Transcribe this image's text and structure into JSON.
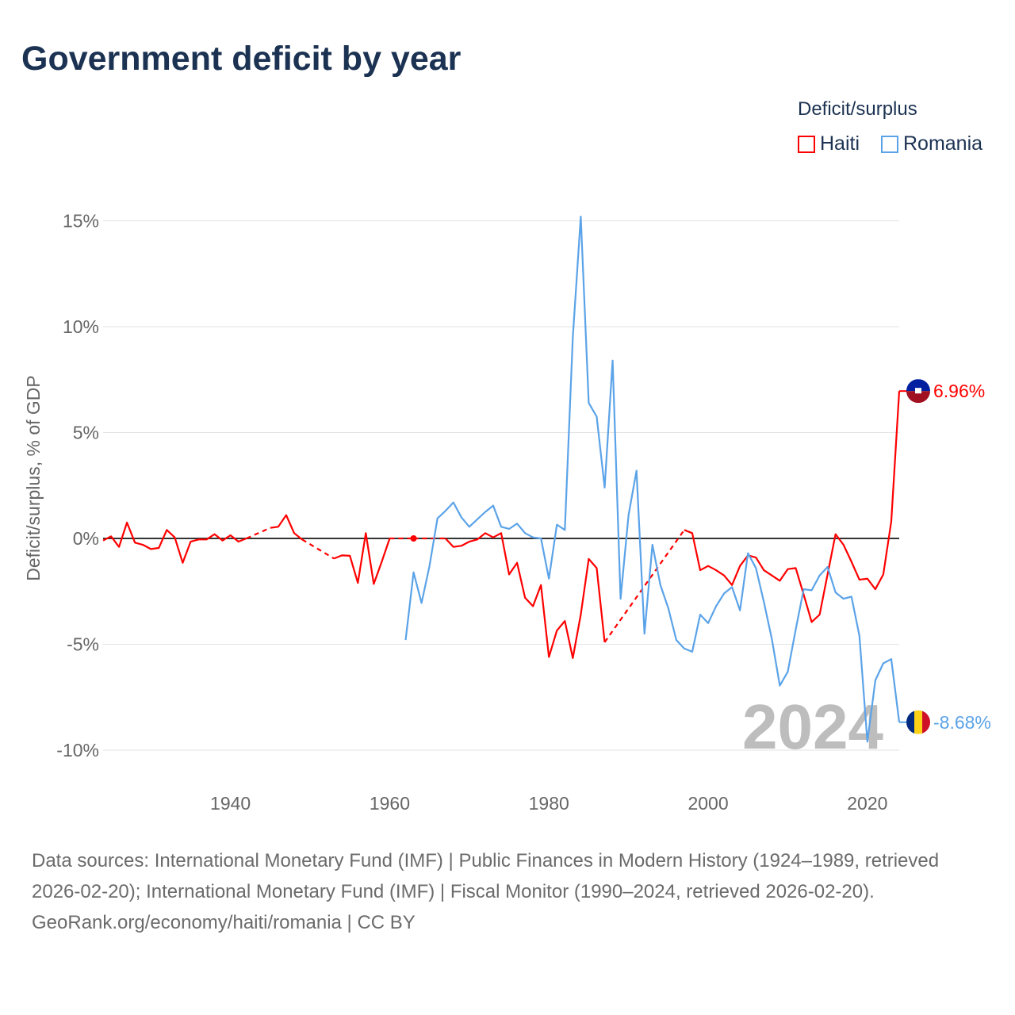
{
  "title": "Government deficit by year",
  "legend": {
    "title": "Deficit/surplus",
    "items": [
      "Haiti",
      "Romania"
    ]
  },
  "colors": {
    "Haiti": "#ff0000",
    "Romania": "#5ba3e8"
  },
  "watermark_year": "2024",
  "end_labels": {
    "Haiti": "6.96%",
    "Romania": "-8.68%"
  },
  "footer": {
    "sources": "Data sources: International Monetary Fund (IMF) | Public Finances in Modern History (1924–1989, retrieved 2026-02-20); International Monetary Fund (IMF) | Fiscal Monitor (1990–2024, retrieved 2026-02-20).",
    "credit": "GeoRank.org/economy/haiti/romania | CC BY"
  },
  "chart_data": {
    "type": "line",
    "title": "Government deficit by year",
    "xlabel": "",
    "ylabel": "Deficit/surplus, % of GDP",
    "xlim": [
      1924,
      2024
    ],
    "ylim": [
      -10,
      15
    ],
    "xticks": [
      1940,
      1960,
      1980,
      2000,
      2020
    ],
    "yticks": [
      -10,
      -5,
      0,
      5,
      10,
      15
    ],
    "ytick_labels": [
      "-10%",
      "-5%",
      "0%",
      "5%",
      "10%",
      "15%"
    ],
    "grid": true,
    "legend_position": "top-right",
    "x_start": 1924,
    "series": [
      {
        "name": "Haiti",
        "values": [
          -0.1,
          0.1,
          -0.4,
          0.75,
          -0.2,
          -0.3,
          -0.5,
          -0.45,
          0.4,
          0.05,
          -1.15,
          -0.15,
          -0.05,
          -0.05,
          0.2,
          -0.1,
          0.15,
          -0.15,
          0.0,
          null,
          null,
          0.5,
          0.55,
          1.1,
          0.25,
          -0.05,
          null,
          null,
          null,
          -0.95,
          -0.8,
          -0.82,
          -2.1,
          0.25,
          -2.15,
          -1.1,
          0.0,
          null,
          null,
          0.0,
          null,
          null,
          null,
          0.0,
          -0.4,
          -0.35,
          -0.15,
          -0.05,
          0.25,
          0.05,
          0.25,
          -1.7,
          -1.15,
          -2.8,
          -3.2,
          -2.2,
          -5.6,
          -4.35,
          -3.9,
          -5.65,
          -3.6,
          -0.97,
          -1.4,
          -4.9,
          null,
          null,
          null,
          null,
          null,
          null,
          null,
          null,
          null,
          0.4,
          0.25,
          -1.5,
          -1.3,
          -1.5,
          -1.75,
          -2.2,
          -1.3,
          -0.8,
          -0.9,
          -1.5,
          -1.75,
          -2.0,
          -1.45,
          -1.4,
          -2.65,
          -3.95,
          -3.6,
          -1.7,
          0.2,
          -0.3,
          -1.1,
          -1.95,
          -1.9,
          -2.4,
          -1.7,
          0.8,
          6.96
        ]
      },
      {
        "name": "Romania",
        "values": [
          null,
          null,
          null,
          null,
          null,
          null,
          null,
          null,
          null,
          null,
          null,
          null,
          null,
          null,
          null,
          null,
          null,
          null,
          null,
          null,
          null,
          null,
          null,
          null,
          null,
          null,
          null,
          null,
          null,
          null,
          null,
          null,
          null,
          null,
          null,
          null,
          null,
          null,
          -4.8,
          -1.6,
          -3.05,
          -1.3,
          0.95,
          1.3,
          1.7,
          1.0,
          0.55,
          0.9,
          1.25,
          1.55,
          0.55,
          0.45,
          0.7,
          0.25,
          0.05,
          0.0,
          -1.9,
          0.65,
          0.4,
          9.5,
          15.2,
          6.4,
          5.75,
          2.4,
          8.4,
          -2.85,
          1.1,
          3.2,
          -4.5,
          -0.3,
          -2.2,
          -3.3,
          -4.8,
          -5.2,
          -5.35,
          -3.6,
          -4.0,
          -3.2,
          -2.6,
          -2.3,
          -3.4,
          -0.7,
          -1.4,
          -3.0,
          -4.75,
          -6.95,
          -6.3,
          -4.3,
          -2.4,
          -2.45,
          -1.75,
          -1.35,
          -2.55,
          -2.85,
          -2.75,
          -4.6,
          -9.6,
          -6.7,
          -5.9,
          -5.7,
          -8.68
        ]
      }
    ]
  }
}
